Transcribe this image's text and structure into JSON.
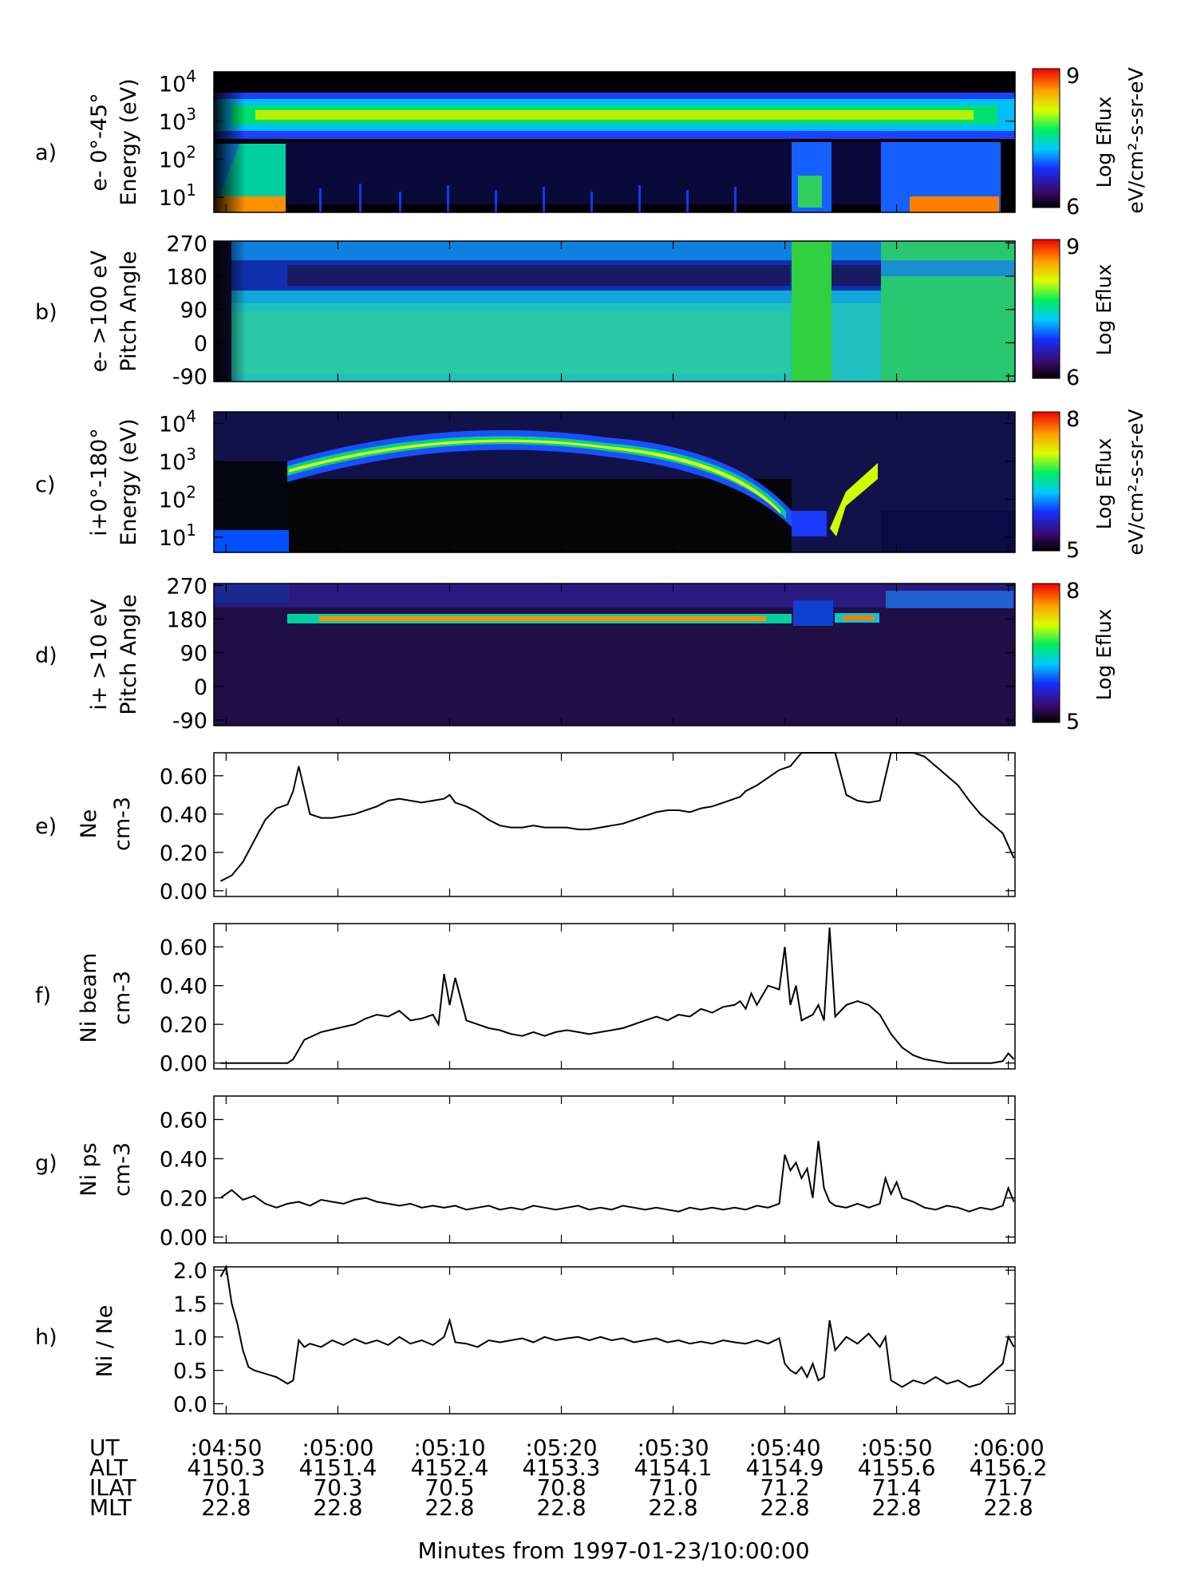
{
  "chart_data": [
    {
      "id": "a",
      "type": "heatmap",
      "panel_letter": "a)",
      "ylabel": [
        "e- 0°-45°",
        "Energy (eV)"
      ],
      "yticks": [
        {
          "base": "10",
          "exp": "1",
          "value": 10
        },
        {
          "base": "10",
          "exp": "2",
          "value": 100
        },
        {
          "base": "10",
          "exp": "3",
          "value": 1000
        },
        {
          "base": "10",
          "exp": "4",
          "value": 10000
        }
      ],
      "yscale": "log",
      "ylim": [
        4,
        20000
      ],
      "colorbar": {
        "min": "6",
        "max": "9",
        "label": [
          "Log Eflux",
          "eV/cm²-s-sr-eV"
        ]
      }
    },
    {
      "id": "b",
      "type": "heatmap",
      "panel_letter": "b)",
      "ylabel": [
        "e- >100 eV",
        "Pitch Angle"
      ],
      "yticks": [
        {
          "text": "270",
          "value": 270
        },
        {
          "text": "180",
          "value": 180
        },
        {
          "text": "90",
          "value": 90
        },
        {
          "text": "0",
          "value": 0
        },
        {
          "text": "-90",
          "value": -90
        }
      ],
      "ylim": [
        -105,
        275
      ],
      "colorbar": {
        "min": "6",
        "max": "9",
        "label": [
          "Log Eflux"
        ]
      }
    },
    {
      "id": "c",
      "type": "heatmap",
      "panel_letter": "c)",
      "ylabel": [
        "i+0°-180°",
        "Energy (eV)"
      ],
      "yticks": [
        {
          "base": "10",
          "exp": "1",
          "value": 10
        },
        {
          "base": "10",
          "exp": "2",
          "value": 100
        },
        {
          "base": "10",
          "exp": "3",
          "value": 1000
        },
        {
          "base": "10",
          "exp": "4",
          "value": 10000
        }
      ],
      "yscale": "log",
      "ylim": [
        4,
        20000
      ],
      "colorbar": {
        "min": "5",
        "max": "8",
        "label": [
          "Log Eflux",
          "eV/cm²-s-sr-eV"
        ]
      }
    },
    {
      "id": "d",
      "type": "heatmap",
      "panel_letter": "d)",
      "ylabel": [
        "i+ >10 eV",
        "Pitch Angle"
      ],
      "yticks": [
        {
          "text": "270",
          "value": 270
        },
        {
          "text": "180",
          "value": 180
        },
        {
          "text": "90",
          "value": 90
        },
        {
          "text": "0",
          "value": 0
        },
        {
          "text": "-90",
          "value": -90
        }
      ],
      "ylim": [
        -105,
        275
      ],
      "colorbar": {
        "min": "5",
        "max": "8",
        "label": [
          "Log Eflux"
        ]
      }
    },
    {
      "id": "e",
      "type": "line",
      "panel_letter": "e)",
      "ylabel": [
        "Ne",
        "cm-3"
      ],
      "yticks": [
        "0.00",
        "0.20",
        "0.40",
        "0.60"
      ],
      "ylim": [
        -0.03,
        0.72
      ],
      "x": [
        49.5,
        50.5,
        51.5,
        52.5,
        53.5,
        54.5,
        55.5,
        56.0,
        56.5,
        57.5,
        58.5,
        59.5,
        60.5,
        61.5,
        62.5,
        63.5,
        64.5,
        65.5,
        66.5,
        67.5,
        68.5,
        69.5,
        70.0,
        70.5,
        71.5,
        72.5,
        73.5,
        74.5,
        75.5,
        76.5,
        77.5,
        78.5,
        79.5,
        80.5,
        81.5,
        82.5,
        83.5,
        84.5,
        85.5,
        86.5,
        87.5,
        88.5,
        89.5,
        90.5,
        91.5,
        92.5,
        93.5,
        94.5,
        95.5,
        96.0,
        96.5,
        97.5,
        98.5,
        99.5,
        100.5,
        101.5,
        102.5,
        103.5,
        104.5,
        105.5,
        106.5,
        107.5,
        108.5,
        109.5,
        110.5,
        111.5,
        112.5,
        113.5,
        114.5,
        115.5,
        116.5,
        117.5,
        118.5,
        119.5,
        120.5
      ],
      "values": [
        0.05,
        0.08,
        0.15,
        0.26,
        0.37,
        0.43,
        0.45,
        0.52,
        0.65,
        0.4,
        0.38,
        0.38,
        0.39,
        0.4,
        0.42,
        0.44,
        0.47,
        0.48,
        0.47,
        0.46,
        0.47,
        0.48,
        0.5,
        0.46,
        0.44,
        0.41,
        0.37,
        0.34,
        0.33,
        0.33,
        0.34,
        0.33,
        0.33,
        0.33,
        0.32,
        0.32,
        0.33,
        0.34,
        0.35,
        0.37,
        0.39,
        0.41,
        0.42,
        0.42,
        0.41,
        0.43,
        0.44,
        0.46,
        0.48,
        0.49,
        0.52,
        0.55,
        0.59,
        0.63,
        0.65,
        0.75,
        0.75,
        0.75,
        0.75,
        0.5,
        0.47,
        0.46,
        0.47,
        0.75,
        0.75,
        0.75,
        0.7,
        0.65,
        0.6,
        0.55,
        0.47,
        0.4,
        0.35,
        0.3,
        0.17
      ]
    },
    {
      "id": "f",
      "type": "line",
      "panel_letter": "f)",
      "ylabel": [
        "Ni beam",
        "cm-3"
      ],
      "yticks": [
        "0.00",
        "0.20",
        "0.40",
        "0.60"
      ],
      "ylim": [
        -0.03,
        0.72
      ],
      "x": [
        49.5,
        51.0,
        52.5,
        54.0,
        55.5,
        56.0,
        57.0,
        58.5,
        60.0,
        61.5,
        62.5,
        63.5,
        64.5,
        65.5,
        66.5,
        67.5,
        68.5,
        69.0,
        69.5,
        70.0,
        70.5,
        71.5,
        72.5,
        73.5,
        74.5,
        75.5,
        76.5,
        77.5,
        78.5,
        79.5,
        80.5,
        81.5,
        82.5,
        83.5,
        84.5,
        85.5,
        86.5,
        87.5,
        88.5,
        89.5,
        90.5,
        91.5,
        92.5,
        93.5,
        94.5,
        95.5,
        96.0,
        96.5,
        97.0,
        97.5,
        98.5,
        99.5,
        100.0,
        100.5,
        101.0,
        101.5,
        102.5,
        103.0,
        103.5,
        104.0,
        104.5,
        105.5,
        106.5,
        107.5,
        108.5,
        109.5,
        110.5,
        111.5,
        112.5,
        113.5,
        114.5,
        115.5,
        116.5,
        117.5,
        118.5,
        119.5,
        120.0,
        120.5
      ],
      "values": [
        0.0,
        0.0,
        0.0,
        0.0,
        0.0,
        0.02,
        0.12,
        0.16,
        0.18,
        0.2,
        0.23,
        0.25,
        0.24,
        0.27,
        0.22,
        0.23,
        0.25,
        0.2,
        0.46,
        0.3,
        0.44,
        0.22,
        0.2,
        0.18,
        0.17,
        0.15,
        0.14,
        0.16,
        0.14,
        0.16,
        0.17,
        0.16,
        0.15,
        0.16,
        0.17,
        0.18,
        0.2,
        0.22,
        0.24,
        0.22,
        0.25,
        0.24,
        0.28,
        0.26,
        0.29,
        0.3,
        0.32,
        0.28,
        0.36,
        0.3,
        0.4,
        0.38,
        0.6,
        0.3,
        0.4,
        0.22,
        0.25,
        0.3,
        0.22,
        0.7,
        0.24,
        0.3,
        0.32,
        0.3,
        0.25,
        0.15,
        0.08,
        0.04,
        0.02,
        0.01,
        0.0,
        0.0,
        0.0,
        0.0,
        0.0,
        0.01,
        0.05,
        0.02
      ]
    },
    {
      "id": "g",
      "type": "line",
      "panel_letter": "g)",
      "ylabel": [
        "Ni ps",
        "cm-3"
      ],
      "yticks": [
        "0.00",
        "0.20",
        "0.40",
        "0.60"
      ],
      "ylim": [
        -0.03,
        0.72
      ],
      "x": [
        49.5,
        50.5,
        51.5,
        52.5,
        53.5,
        54.5,
        55.5,
        56.5,
        57.5,
        58.5,
        59.5,
        60.5,
        61.5,
        62.5,
        63.5,
        64.5,
        65.5,
        66.5,
        67.5,
        68.5,
        69.5,
        70.5,
        71.5,
        72.5,
        73.5,
        74.5,
        75.5,
        76.5,
        77.5,
        78.5,
        79.5,
        80.5,
        81.5,
        82.5,
        83.5,
        84.5,
        85.5,
        86.5,
        87.5,
        88.5,
        89.5,
        90.5,
        91.5,
        92.5,
        93.5,
        94.5,
        95.5,
        96.5,
        97.5,
        98.5,
        99.5,
        100.0,
        100.5,
        101.0,
        101.5,
        102.0,
        102.5,
        103.0,
        103.5,
        104.0,
        104.5,
        105.5,
        106.5,
        107.5,
        108.5,
        109.0,
        109.5,
        110.0,
        110.5,
        111.5,
        112.5,
        113.5,
        114.5,
        115.5,
        116.5,
        117.5,
        118.5,
        119.5,
        120.0,
        120.5
      ],
      "values": [
        0.2,
        0.24,
        0.19,
        0.21,
        0.17,
        0.15,
        0.17,
        0.18,
        0.16,
        0.19,
        0.18,
        0.17,
        0.19,
        0.2,
        0.18,
        0.17,
        0.16,
        0.17,
        0.15,
        0.16,
        0.15,
        0.16,
        0.14,
        0.15,
        0.16,
        0.14,
        0.15,
        0.14,
        0.16,
        0.15,
        0.14,
        0.15,
        0.16,
        0.14,
        0.15,
        0.14,
        0.16,
        0.15,
        0.14,
        0.15,
        0.14,
        0.13,
        0.15,
        0.14,
        0.15,
        0.14,
        0.15,
        0.14,
        0.16,
        0.15,
        0.17,
        0.42,
        0.34,
        0.38,
        0.3,
        0.35,
        0.2,
        0.49,
        0.25,
        0.18,
        0.16,
        0.15,
        0.17,
        0.15,
        0.17,
        0.3,
        0.22,
        0.28,
        0.2,
        0.18,
        0.15,
        0.14,
        0.16,
        0.15,
        0.13,
        0.15,
        0.14,
        0.16,
        0.25,
        0.18
      ]
    },
    {
      "id": "h",
      "type": "line",
      "panel_letter": "h)",
      "ylabel": [
        "Ni / Ne"
      ],
      "yticks": [
        "0.0",
        "0.5",
        "1.0",
        "1.5",
        "2.0"
      ],
      "ylim": [
        -0.15,
        2.05
      ],
      "x": [
        49.5,
        50.0,
        50.5,
        51.0,
        51.5,
        52.0,
        52.5,
        53.5,
        54.5,
        55.5,
        56.0,
        56.5,
        57.0,
        57.5,
        58.5,
        59.5,
        60.5,
        61.5,
        62.5,
        63.5,
        64.5,
        65.5,
        66.5,
        67.5,
        68.5,
        69.5,
        70.0,
        70.5,
        71.5,
        72.5,
        73.5,
        74.5,
        75.5,
        76.5,
        77.5,
        78.5,
        79.5,
        80.5,
        81.5,
        82.5,
        83.5,
        84.5,
        85.5,
        86.5,
        87.5,
        88.5,
        89.5,
        90.5,
        91.5,
        92.5,
        93.5,
        94.5,
        95.5,
        96.5,
        97.5,
        98.5,
        99.5,
        100.0,
        100.5,
        101.0,
        101.5,
        102.0,
        102.5,
        103.0,
        103.5,
        104.0,
        104.5,
        105.5,
        106.5,
        107.5,
        108.5,
        109.0,
        109.5,
        110.5,
        111.5,
        112.5,
        113.5,
        114.5,
        115.5,
        116.5,
        117.5,
        118.5,
        119.5,
        120.0,
        120.5
      ],
      "values": [
        1.9,
        2.05,
        1.5,
        1.2,
        0.8,
        0.55,
        0.5,
        0.45,
        0.4,
        0.3,
        0.35,
        0.95,
        0.85,
        0.9,
        0.85,
        0.95,
        0.88,
        0.97,
        0.9,
        0.95,
        0.88,
        1.0,
        0.9,
        0.95,
        0.88,
        1.0,
        1.25,
        0.92,
        0.9,
        0.85,
        0.95,
        0.92,
        0.95,
        0.98,
        0.92,
        1.0,
        0.95,
        0.98,
        1.0,
        0.95,
        1.0,
        0.95,
        0.98,
        0.92,
        0.95,
        0.98,
        0.92,
        0.95,
        0.9,
        0.93,
        0.9,
        0.95,
        0.92,
        0.9,
        0.95,
        0.9,
        0.98,
        0.6,
        0.5,
        0.45,
        0.55,
        0.4,
        0.6,
        0.35,
        0.4,
        1.25,
        0.8,
        1.0,
        0.9,
        1.05,
        0.85,
        1.0,
        0.35,
        0.25,
        0.35,
        0.3,
        0.4,
        0.3,
        0.35,
        0.25,
        0.3,
        0.45,
        0.6,
        1.0,
        0.85
      ]
    }
  ],
  "time_axis": {
    "xlim": [
      48.9,
      120.6
    ],
    "rows": [
      {
        "label": "UT",
        "values": [
          ":04:50",
          ":05:00",
          ":05:10",
          ":05:20",
          ":05:30",
          ":05:40",
          ":05:50",
          ":06:00"
        ]
      },
      {
        "label": "ALT",
        "values": [
          "4150.3",
          "4151.4",
          "4152.4",
          "4153.3",
          "4154.1",
          "4154.9",
          "4155.6",
          "4156.2"
        ]
      },
      {
        "label": "ILAT",
        "values": [
          "70.1",
          "70.3",
          "70.5",
          "70.8",
          "71.0",
          "71.2",
          "71.4",
          "71.7"
        ]
      },
      {
        "label": "MLT",
        "values": [
          "22.8",
          "22.8",
          "22.8",
          "22.8",
          "22.8",
          "22.8",
          "22.8",
          "22.8"
        ]
      }
    ],
    "tick_minutes": [
      50,
      60,
      70,
      80,
      90,
      100,
      110,
      120
    ],
    "xlabel": "Minutes from 1997-01-23/10:00:00"
  }
}
